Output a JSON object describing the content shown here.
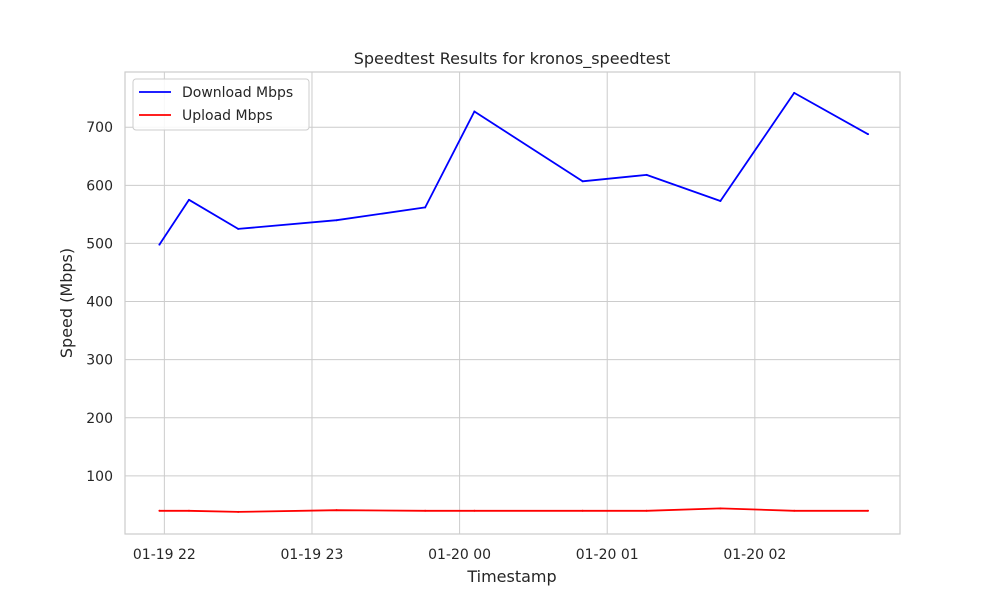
{
  "chart_data": {
    "type": "line",
    "title": "Speedtest Results for kronos_speedtest",
    "xlabel": "Timestamp",
    "ylabel": "Speed (Mbps)",
    "x_ticks": [
      "01-19 22",
      "01-19 23",
      "01-20 00",
      "01-20 01",
      "01-20 02"
    ],
    "x_tick_values": [
      "2024-01-19T22:00",
      "2024-01-19T23:00",
      "2024-01-20T00:00",
      "2024-01-20T01:00",
      "2024-01-20T02:00"
    ],
    "y_ticks": [
      100,
      200,
      300,
      400,
      500,
      600,
      700
    ],
    "ylim": [
      0,
      795
    ],
    "xlim": [
      "2024-01-19T21:44",
      "2024-01-20T02:59"
    ],
    "x": [
      "2024-01-19T21:58",
      "2024-01-19T22:10",
      "2024-01-19T22:30",
      "2024-01-19T23:10",
      "2024-01-19T23:46",
      "2024-01-20T00:06",
      "2024-01-20T00:50",
      "2024-01-20T01:16",
      "2024-01-20T01:46",
      "2024-01-20T02:16",
      "2024-01-20T02:46"
    ],
    "series": [
      {
        "name": "Download Mbps",
        "color": "#0000ff",
        "values": [
          498,
          575,
          525,
          540,
          562,
          727,
          607,
          618,
          573,
          759,
          688
        ]
      },
      {
        "name": "Upload Mbps",
        "color": "#ff0000",
        "values": [
          40,
          40,
          38,
          41,
          40,
          40,
          40,
          40,
          44,
          40,
          40
        ]
      }
    ],
    "grid": true,
    "legend": "top-left"
  }
}
